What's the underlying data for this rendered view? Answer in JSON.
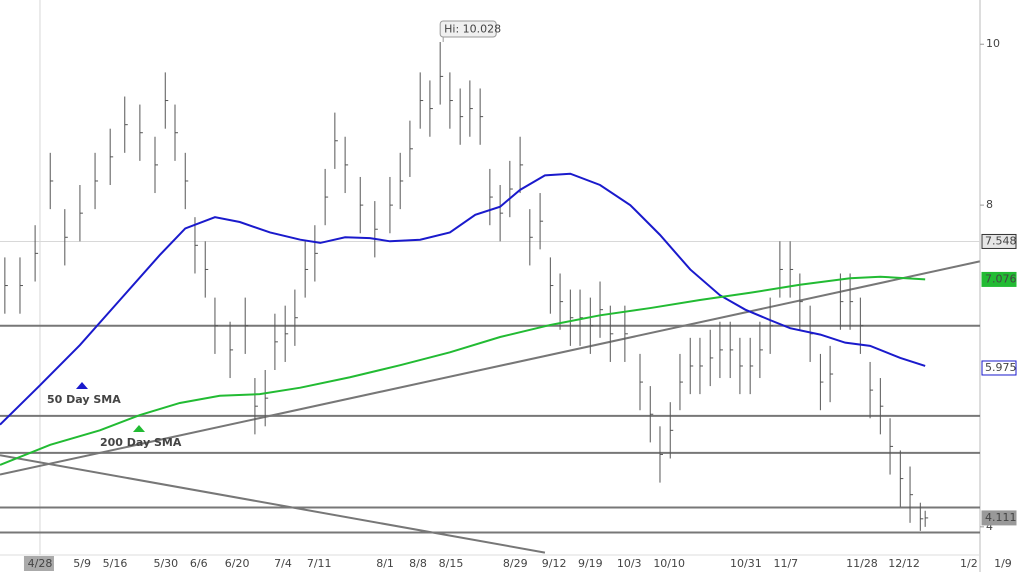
{
  "chart_data": {
    "type": "ohlc",
    "xlim": [
      -7.4,
      182.2
    ],
    "ylim": [
      3.65,
      10.55
    ],
    "yticks": [
      4,
      8,
      10
    ],
    "xticks": [
      {
        "value": 0,
        "label": "4/28"
      },
      {
        "value": 7.8,
        "label": "5/9"
      },
      {
        "value": 13.9,
        "label": "5/16"
      },
      {
        "value": 23.3,
        "label": "5/30"
      },
      {
        "value": 29.4,
        "label": "6/6"
      },
      {
        "value": 36.5,
        "label": "6/20"
      },
      {
        "value": 45,
        "label": "7/4"
      },
      {
        "value": 51.7,
        "label": "7/11"
      },
      {
        "value": 63.9,
        "label": "8/1"
      },
      {
        "value": 70,
        "label": "8/8"
      },
      {
        "value": 76.1,
        "label": "8/15"
      },
      {
        "value": 88,
        "label": "8/29"
      },
      {
        "value": 95.2,
        "label": "9/12"
      },
      {
        "value": 101.9,
        "label": "9/19"
      },
      {
        "value": 109.1,
        "label": "10/3"
      },
      {
        "value": 116.5,
        "label": "10/10"
      },
      {
        "value": 130.7,
        "label": "10/31"
      },
      {
        "value": 138.1,
        "label": "11/7"
      },
      {
        "value": 152.2,
        "label": "11/28"
      },
      {
        "value": 160,
        "label": "12/12"
      },
      {
        "value": 172,
        "label": "1/2"
      },
      {
        "value": 178.3,
        "label": "1/9"
      }
    ],
    "bars": {
      "color": "#555555",
      "x": [
        -6.5,
        -3.7,
        -0.9,
        1.9,
        4.6,
        7.4,
        10.2,
        13.0,
        15.7,
        18.5,
        21.3,
        23.2,
        25.0,
        26.9,
        28.7,
        30.6,
        32.4,
        35.2,
        38.0,
        39.8,
        41.7,
        43.5,
        45.4,
        47.2,
        49.1,
        50.9,
        52.8,
        54.6,
        56.5,
        59.3,
        62.0,
        64.8,
        66.7,
        68.5,
        70.4,
        72.2,
        74.1,
        75.9,
        77.8,
        79.6,
        81.5,
        83.3,
        85.2,
        87.0,
        88.9,
        90.7,
        92.6,
        94.5,
        96.3,
        98.2,
        100.0,
        101.9,
        103.7,
        105.6,
        108.3,
        111.1,
        113.0,
        114.8,
        116.7,
        118.5,
        120.4,
        122.2,
        124.1,
        125.9,
        127.8,
        129.6,
        131.5,
        133.3,
        135.2,
        137.0,
        138.9,
        140.7,
        142.6,
        144.5,
        146.3,
        148.2,
        150.0,
        151.9,
        153.7,
        155.6,
        157.4,
        159.3,
        161.1,
        163.0,
        163.9
      ],
      "high": [
        7.35,
        7.35,
        7.75,
        8.65,
        7.95,
        8.25,
        8.65,
        8.95,
        9.35,
        9.25,
        8.85,
        9.65,
        9.25,
        8.65,
        7.85,
        7.55,
        6.85,
        6.55,
        6.85,
        5.85,
        5.95,
        6.65,
        6.75,
        6.95,
        7.55,
        7.75,
        8.45,
        9.15,
        8.85,
        8.35,
        8.05,
        8.35,
        8.65,
        9.05,
        9.65,
        9.55,
        10.028,
        9.65,
        9.45,
        9.55,
        9.45,
        8.45,
        8.25,
        8.55,
        8.85,
        7.95,
        8.15,
        7.35,
        7.15,
        6.95,
        6.95,
        6.85,
        7.05,
        6.75,
        6.75,
        6.15,
        5.75,
        5.25,
        5.55,
        6.15,
        6.35,
        6.35,
        6.45,
        6.55,
        6.55,
        6.35,
        6.35,
        6.55,
        6.85,
        7.55,
        7.55,
        7.15,
        6.75,
        6.15,
        6.25,
        7.15,
        7.15,
        6.85,
        6.05,
        5.85,
        5.35,
        4.95,
        4.75,
        4.3,
        4.2
      ],
      "low": [
        6.65,
        6.65,
        7.05,
        7.95,
        7.25,
        7.55,
        7.95,
        8.25,
        8.65,
        8.55,
        8.15,
        8.95,
        8.55,
        7.95,
        7.15,
        6.85,
        6.15,
        5.85,
        6.15,
        5.15,
        5.25,
        5.95,
        6.05,
        6.25,
        6.85,
        7.05,
        7.75,
        8.45,
        8.15,
        7.65,
        7.35,
        7.65,
        7.95,
        8.35,
        8.95,
        8.85,
        9.25,
        8.95,
        8.75,
        8.85,
        8.75,
        7.75,
        7.55,
        7.85,
        8.15,
        7.25,
        7.45,
        6.65,
        6.45,
        6.25,
        6.25,
        6.15,
        6.35,
        6.05,
        6.05,
        5.45,
        5.05,
        4.55,
        4.85,
        5.45,
        5.65,
        5.65,
        5.75,
        5.85,
        5.85,
        5.65,
        5.65,
        5.85,
        6.15,
        6.85,
        6.85,
        6.45,
        6.05,
        5.45,
        5.55,
        6.45,
        6.45,
        6.15,
        5.35,
        5.15,
        4.65,
        4.25,
        4.05,
        3.95,
        4.0
      ],
      "close": [
        7.0,
        7.0,
        7.4,
        8.3,
        7.6,
        7.9,
        8.3,
        8.6,
        9.0,
        8.9,
        8.5,
        9.3,
        8.9,
        8.3,
        7.5,
        7.2,
        6.5,
        6.2,
        6.5,
        5.5,
        5.6,
        6.3,
        6.4,
        6.6,
        7.2,
        7.4,
        8.1,
        8.8,
        8.5,
        8.0,
        7.7,
        8.0,
        8.3,
        8.7,
        9.3,
        9.2,
        9.6,
        9.3,
        9.1,
        9.2,
        9.1,
        8.1,
        7.9,
        8.2,
        8.5,
        7.6,
        7.8,
        7.0,
        6.8,
        6.6,
        6.6,
        6.5,
        6.7,
        6.4,
        6.4,
        5.8,
        5.4,
        4.9,
        5.2,
        5.8,
        6.0,
        6.0,
        6.1,
        6.2,
        6.2,
        6.0,
        6.0,
        6.2,
        6.5,
        7.2,
        7.2,
        6.8,
        6.4,
        5.8,
        5.9,
        6.8,
        6.8,
        6.5,
        5.7,
        5.5,
        5.0,
        4.6,
        4.4,
        4.1,
        4.111
      ]
    },
    "series": [
      {
        "name": "50 Day SMA",
        "color": "#1a1acc",
        "x": [
          -7.4,
          0,
          7.4,
          14.8,
          22.2,
          26.9,
          32.4,
          37.0,
          42.6,
          48.2,
          51.9,
          56.5,
          61.1,
          64.8,
          70.4,
          75.9,
          80.6,
          85.2,
          88.9,
          93.5,
          98.2,
          103.7,
          109.3,
          114.8,
          120.4,
          125.9,
          130.6,
          135.2,
          138.9,
          144.5,
          149.1,
          153.7,
          159.3,
          163.9
        ],
        "values": [
          5.27,
          5.76,
          6.26,
          6.82,
          7.38,
          7.71,
          7.85,
          7.79,
          7.66,
          7.57,
          7.53,
          7.6,
          7.59,
          7.55,
          7.57,
          7.66,
          7.88,
          7.98,
          8.19,
          8.37,
          8.39,
          8.25,
          8.0,
          7.63,
          7.2,
          6.88,
          6.7,
          6.57,
          6.47,
          6.39,
          6.29,
          6.25,
          6.1,
          6.0
        ]
      },
      {
        "name": "200 Day SMA",
        "color": "#22bb33",
        "x": [
          -7.4,
          1.9,
          11.1,
          18.5,
          25.9,
          33.3,
          40.7,
          48.2,
          57.4,
          66.7,
          75.9,
          85.2,
          94.5,
          103.7,
          113.0,
          122.2,
          131.5,
          140.7,
          150.0,
          155.6,
          163.9
        ],
        "values": [
          4.77,
          5.02,
          5.2,
          5.39,
          5.54,
          5.63,
          5.65,
          5.73,
          5.86,
          6.01,
          6.17,
          6.36,
          6.51,
          6.63,
          6.72,
          6.82,
          6.91,
          7.01,
          7.09,
          7.11,
          7.076
        ]
      }
    ],
    "levels": [
      6.5,
      5.38,
      4.92,
      4.24,
      3.93
    ],
    "trendlines": [
      {
        "x": [
          -7.4,
          174
        ],
        "values": [
          4.65,
          7.3
        ]
      },
      {
        "x": [
          -7.4,
          93.5
        ],
        "values": [
          4.89,
          3.68
        ]
      }
    ],
    "crosshair": 7.548,
    "hi_label": "Hi: 10.028",
    "price_tags": [
      {
        "value": 7.548,
        "color": "#e6e6e6",
        "text_color": "#333333"
      },
      {
        "value": 7.076,
        "color": "#22bb33",
        "text_color": "#ffffff"
      },
      {
        "value": 5.975,
        "color": "#ffffff",
        "text_color": "#1a1acc"
      },
      {
        "value": 4.111,
        "color": "#999999",
        "text_color": "#ffffff"
      }
    ]
  }
}
